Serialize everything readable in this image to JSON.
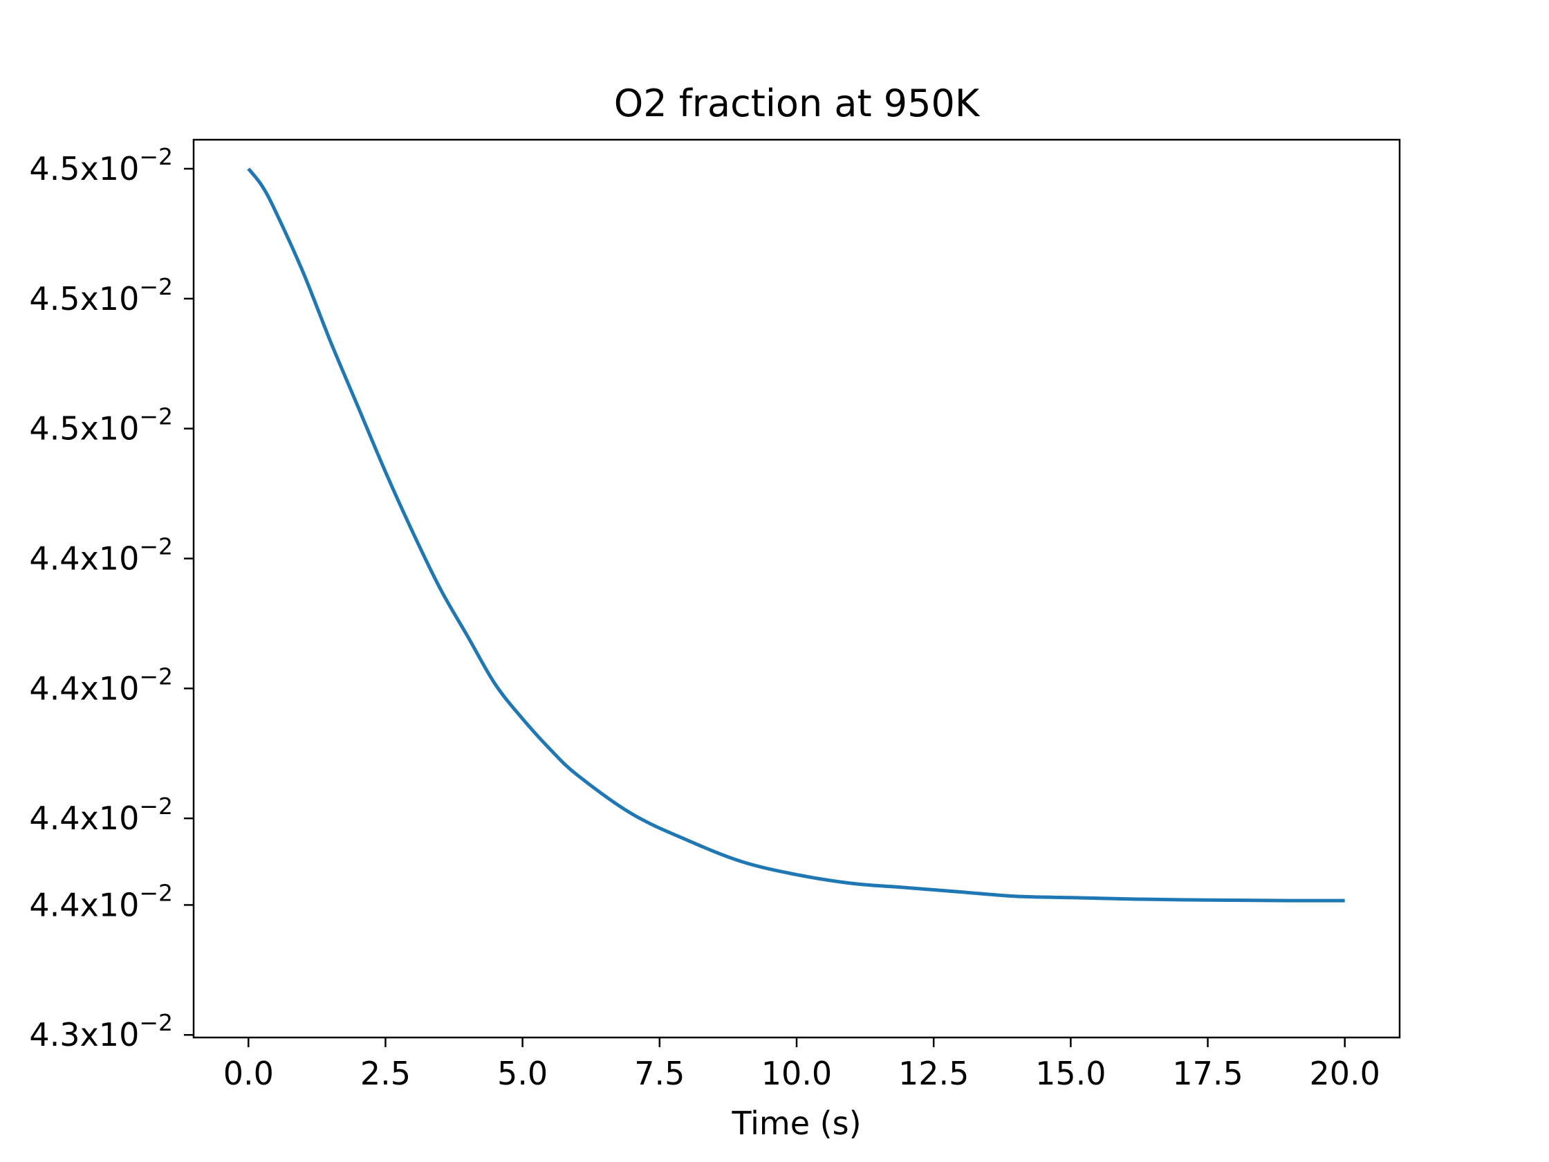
{
  "chart_data": {
    "type": "line",
    "title": "O2 fraction at 950K",
    "xlabel": "Time (s)",
    "ylabel": "",
    "xlim": [
      -1.0,
      21.0
    ],
    "ylim": [
      0.043094,
      0.045167
    ],
    "x_ticks": [
      {
        "value": 0.0,
        "label": "0.0"
      },
      {
        "value": 2.5,
        "label": "2.5"
      },
      {
        "value": 5.0,
        "label": "5.0"
      },
      {
        "value": 7.5,
        "label": "7.5"
      },
      {
        "value": 10.0,
        "label": "10.0"
      },
      {
        "value": 12.5,
        "label": "12.5"
      },
      {
        "value": 15.0,
        "label": "15.0"
      },
      {
        "value": 17.5,
        "label": "17.5"
      },
      {
        "value": 20.0,
        "label": "20.0"
      }
    ],
    "y_ticks": [
      {
        "value": 0.0431,
        "mantissa": "4.3x10",
        "exponent": "−2"
      },
      {
        "value": 0.0434,
        "mantissa": "4.4x10",
        "exponent": "−2"
      },
      {
        "value": 0.0436,
        "mantissa": "4.4x10",
        "exponent": "−2"
      },
      {
        "value": 0.0439,
        "mantissa": "4.4x10",
        "exponent": "−2"
      },
      {
        "value": 0.0442,
        "mantissa": "4.4x10",
        "exponent": "−2"
      },
      {
        "value": 0.0445,
        "mantissa": "4.5x10",
        "exponent": "−2"
      },
      {
        "value": 0.0448,
        "mantissa": "4.5x10",
        "exponent": "−2"
      },
      {
        "value": 0.0451,
        "mantissa": "4.5x10",
        "exponent": "−2"
      }
    ],
    "grid": false,
    "series": [
      {
        "name": "O2",
        "color": "#1f77b4",
        "x": [
          0,
          0.25,
          0.5,
          1,
          1.5,
          2,
          2.5,
          3,
          3.5,
          4,
          4.5,
          5,
          5.5,
          6,
          7,
          8,
          9,
          10,
          11,
          12,
          13,
          14,
          15,
          16,
          17,
          18,
          19,
          20
        ],
        "y": [
          0.0451,
          0.04506,
          0.045,
          0.04486,
          0.0447,
          0.04455,
          0.0444,
          0.04426,
          0.04413,
          0.04402,
          0.04391,
          0.04383,
          0.04376,
          0.0437,
          0.04361,
          0.04355,
          0.0435,
          0.04347,
          0.04345,
          0.04344,
          0.04343,
          0.04342,
          0.043417,
          0.043414,
          0.043412,
          0.043411,
          0.04341,
          0.04341
        ]
      }
    ]
  }
}
